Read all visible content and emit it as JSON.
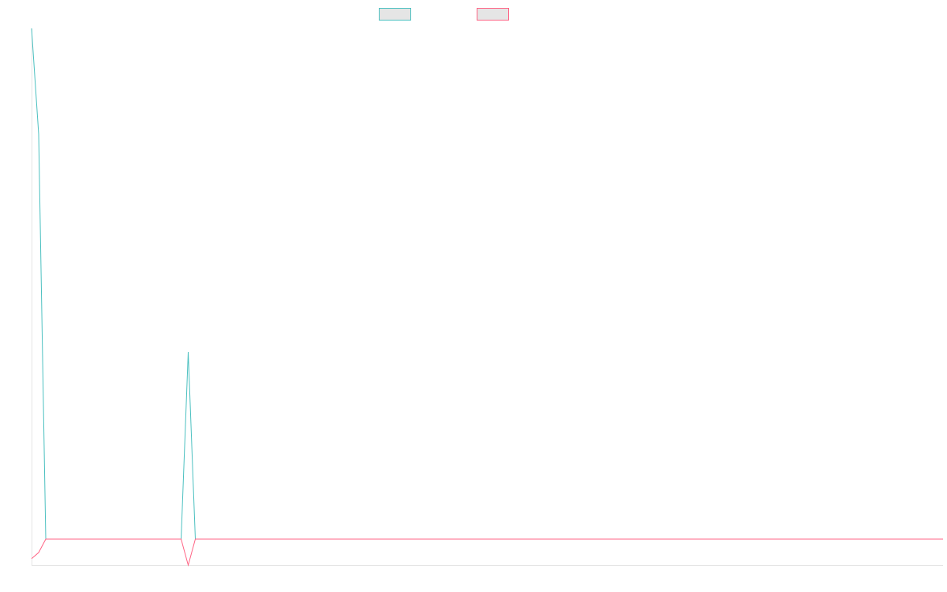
{
  "chart_data": {
    "type": "line",
    "title": "",
    "xlabel": "",
    "ylabel": "",
    "ylim": [
      0,
      100
    ],
    "grid": false,
    "legend_placement": "top",
    "legend_box_fill": "#e5e5e5",
    "axis_color": "#e5e5e5",
    "series": [
      {
        "color": "#4bc0c0",
        "values": [
          100,
          80.3,
          4.85,
          4.85,
          4.85,
          4.85,
          4.85,
          4.85,
          4.85,
          4.85,
          4.85,
          4.85,
          4.85,
          4.85,
          4.85,
          4.85,
          4.85,
          4.85,
          4.85,
          4.85,
          4.85,
          4.85,
          39.7,
          4.85,
          4.85,
          4.85,
          4.85,
          4.85,
          4.85,
          4.85,
          4.85,
          4.85,
          4.85,
          4.85,
          4.85,
          4.85,
          4.85,
          4.85,
          4.85,
          4.85,
          4.85,
          4.85,
          4.85,
          4.85,
          4.85,
          4.85,
          4.85,
          4.85,
          4.85,
          4.85,
          4.85,
          4.85,
          4.85,
          4.85,
          4.85,
          4.85,
          4.85,
          4.85,
          4.85,
          4.85,
          4.85,
          4.85,
          4.85,
          4.85,
          4.85,
          4.85,
          4.85,
          4.85,
          4.85,
          4.85,
          4.85,
          4.85,
          4.85,
          4.85,
          4.85,
          4.85,
          4.85,
          4.85,
          4.85,
          4.85,
          4.85,
          4.85,
          4.85,
          4.85,
          4.85,
          4.85,
          4.85,
          4.85,
          4.85,
          4.85,
          4.85,
          4.85,
          4.85,
          4.85,
          4.85,
          4.85,
          4.85,
          4.85,
          4.85,
          4.85,
          4.85,
          4.85,
          4.85,
          4.85,
          4.85,
          4.85,
          4.85,
          4.85,
          4.85,
          4.85,
          4.85,
          4.85,
          4.85,
          4.85,
          4.85,
          4.85,
          4.85,
          4.85,
          4.85,
          4.85,
          4.85,
          4.85,
          4.85,
          4.85,
          4.85,
          4.85,
          4.85,
          4.85,
          4.85
        ]
      },
      {
        "color": "#ff6384",
        "values": [
          1.2,
          2.35,
          4.85,
          4.85,
          4.85,
          4.85,
          4.85,
          4.85,
          4.85,
          4.85,
          4.85,
          4.85,
          4.85,
          4.85,
          4.85,
          4.85,
          4.85,
          4.85,
          4.85,
          4.85,
          4.85,
          4.85,
          0,
          4.85,
          4.85,
          4.85,
          4.85,
          4.85,
          4.85,
          4.85,
          4.85,
          4.85,
          4.85,
          4.85,
          4.85,
          4.85,
          4.85,
          4.85,
          4.85,
          4.85,
          4.85,
          4.85,
          4.85,
          4.85,
          4.85,
          4.85,
          4.85,
          4.85,
          4.85,
          4.85,
          4.85,
          4.85,
          4.85,
          4.85,
          4.85,
          4.85,
          4.85,
          4.85,
          4.85,
          4.85,
          4.85,
          4.85,
          4.85,
          4.85,
          4.85,
          4.85,
          4.85,
          4.85,
          4.85,
          4.85,
          4.85,
          4.85,
          4.85,
          4.85,
          4.85,
          4.85,
          4.85,
          4.85,
          4.85,
          4.85,
          4.85,
          4.85,
          4.85,
          4.85,
          4.85,
          4.85,
          4.85,
          4.85,
          4.85,
          4.85,
          4.85,
          4.85,
          4.85,
          4.85,
          4.85,
          4.85,
          4.85,
          4.85,
          4.85,
          4.85,
          4.85,
          4.85,
          4.85,
          4.85,
          4.85,
          4.85,
          4.85,
          4.85,
          4.85,
          4.85,
          4.85,
          4.85,
          4.85,
          4.85,
          4.85,
          4.85,
          4.85,
          4.85,
          4.85,
          4.85,
          4.85,
          4.85,
          4.85,
          4.85,
          4.85,
          4.85,
          4.85,
          4.85,
          4.85
        ]
      }
    ]
  }
}
